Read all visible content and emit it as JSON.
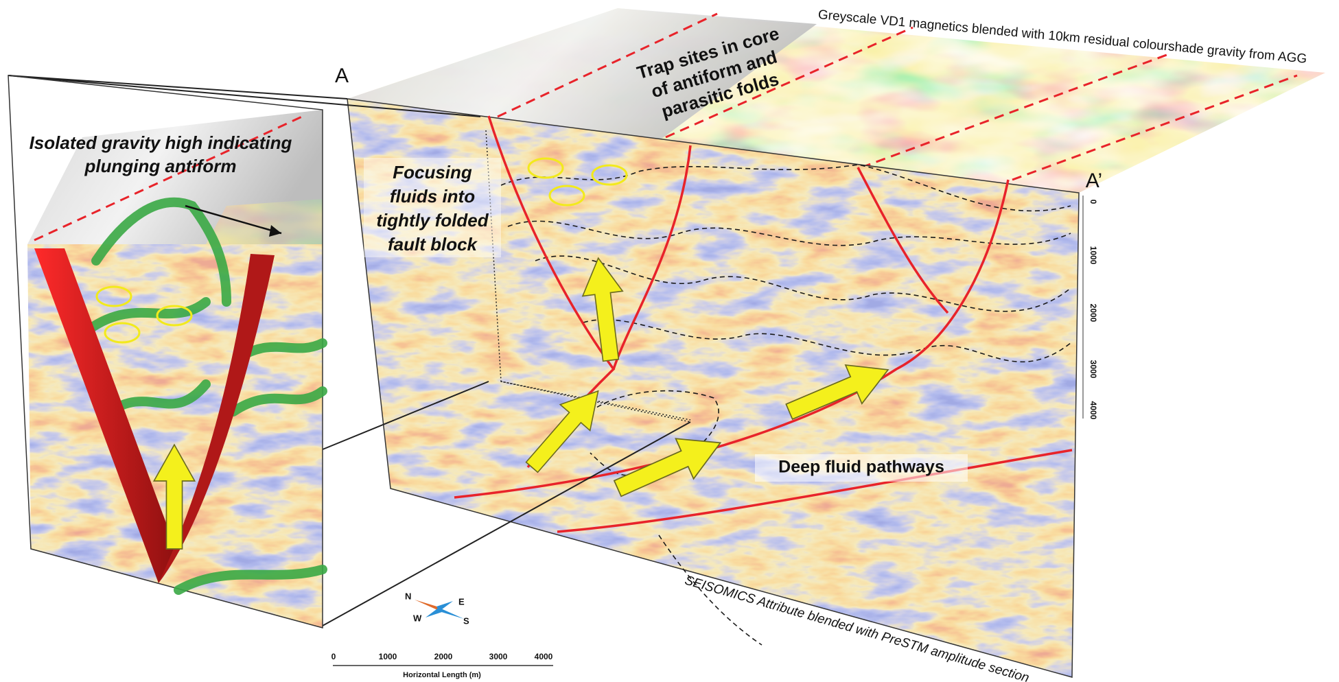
{
  "section_labels": {
    "start": "A",
    "end": "A’"
  },
  "inset_callout": [
    "Isolated gravity high indicating",
    "plunging antiform"
  ],
  "trap_callout": [
    "Trap sites in core",
    "of antiform and",
    "parasitic folds"
  ],
  "focus_callout": [
    "Focusing",
    "fluids into",
    "tightly folded",
    "fault block"
  ],
  "pathway_callout": "Deep fluid pathways",
  "map_caption": "Greyscale VD1 magnetics blended with 10km residual colourshade gravity  from AGG",
  "section_caption": "SEISOMICS Attribute blended with PreSTM amplitude section",
  "depth_ticks": [
    0,
    1000,
    2000,
    3000,
    4000
  ],
  "scale_bar": {
    "ticks": [
      0,
      1000,
      2000,
      3000,
      4000
    ],
    "label": "Horizontal Length (m)"
  },
  "compass": {
    "north": "N",
    "east": "E",
    "south": "S",
    "west": "W"
  }
}
